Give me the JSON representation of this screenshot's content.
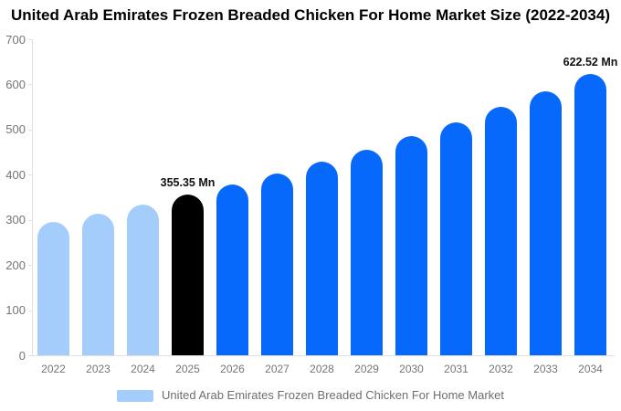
{
  "chart_data": {
    "type": "bar",
    "title": "United Arab Emirates Frozen Breaded Chicken For Home Market Size (2022-2034)",
    "unit": "Mn",
    "categories": [
      "2022",
      "2023",
      "2024",
      "2025",
      "2026",
      "2027",
      "2028",
      "2029",
      "2030",
      "2031",
      "2032",
      "2033",
      "2034"
    ],
    "values": [
      295,
      314,
      334,
      355.35,
      378,
      403,
      428,
      456,
      485,
      516,
      550,
      585,
      622.52
    ],
    "bar_colors": [
      "#A4CDFC",
      "#A4CDFC",
      "#A4CDFC",
      "#000000",
      "#0768FC",
      "#0768FC",
      "#0768FC",
      "#0768FC",
      "#0768FC",
      "#0768FC",
      "#0768FC",
      "#0768FC",
      "#0768FC"
    ],
    "data_labels": [
      {
        "index": 3,
        "text": "355.35 Mn"
      },
      {
        "index": 12,
        "text": "622.52 Mn"
      }
    ],
    "xlabel": "",
    "ylabel": "",
    "ylim": [
      0,
      700
    ],
    "y_ticks": [
      0,
      100,
      200,
      300,
      400,
      500,
      600,
      700
    ],
    "grid": false,
    "legend": {
      "position": "bottom",
      "label": "United Arab Emirates Frozen Breaded Chicken For Home Market",
      "swatch_color": "#A4CDFC"
    },
    "colors": {
      "axis_line": "#e0e0e0",
      "tick_label": "#757575",
      "legend_text": "#6e6e6e",
      "title_text": "#000000",
      "past_bar": "#A4CDFC",
      "highlight_bar": "#000000",
      "forecast_bar": "#0768FC"
    }
  }
}
